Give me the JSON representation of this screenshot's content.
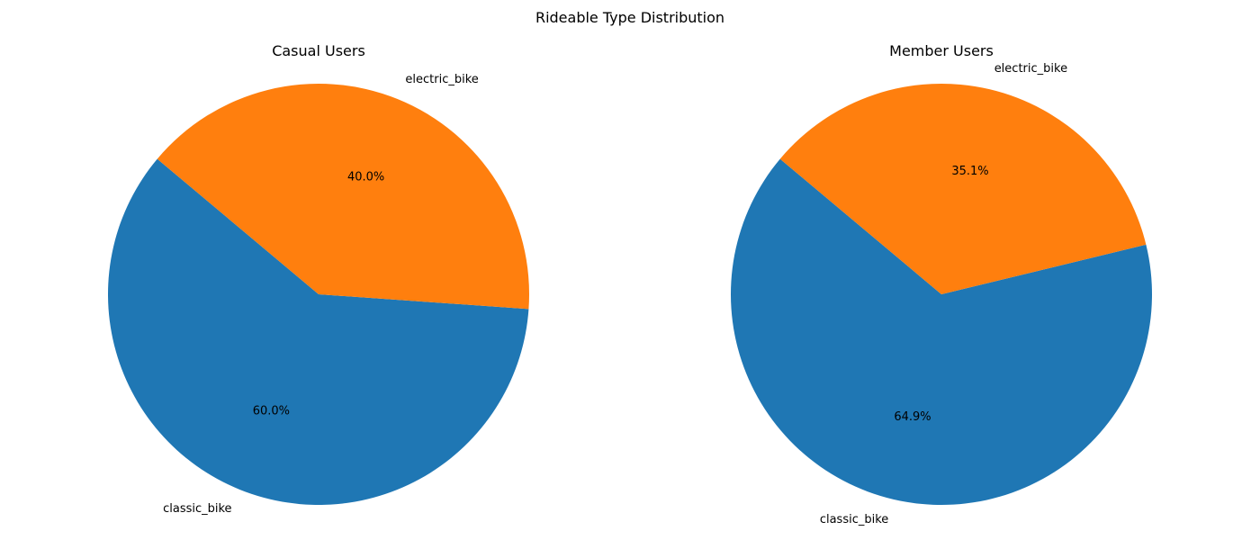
{
  "chart_data": {
    "title": "Rideable Type Distribution",
    "type": "pie",
    "charts": [
      {
        "title": "Casual Users",
        "labels": [
          "classic_bike",
          "electric_bike"
        ],
        "values": [
          60.0,
          40.0
        ],
        "value_labels": [
          "60.0%",
          "40.0%"
        ],
        "start_angle_deg": 140,
        "direction": "counterclockwise",
        "colors": [
          "#1f77b4",
          "#ff7f0e"
        ]
      },
      {
        "title": "Member Users",
        "labels": [
          "classic_bike",
          "electric_bike"
        ],
        "values": [
          64.9,
          35.1
        ],
        "value_labels": [
          "64.9%",
          "35.1%"
        ],
        "start_angle_deg": 140,
        "direction": "counterclockwise",
        "colors": [
          "#1f77b4",
          "#ff7f0e"
        ]
      }
    ]
  }
}
